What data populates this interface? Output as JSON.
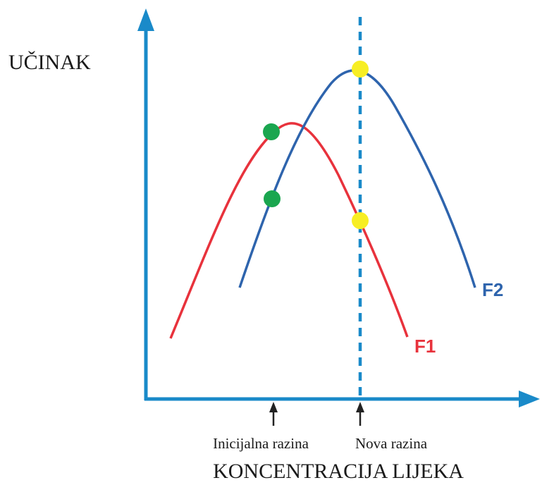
{
  "labels": {
    "y_axis": "UČINAK",
    "x_axis": "KONCENTRACIJA LIJEKA",
    "marker_initial": "Inicijalna razina",
    "marker_new": "Nova razina",
    "curve_f1": "F1",
    "curve_f2": "F2"
  },
  "colors": {
    "axis": "#1a8ac9",
    "curve_f1": "#e8323c",
    "curve_f2": "#2e64ad",
    "point_initial": "#1aa64f",
    "point_new": "#f7ee24",
    "marker_arrow": "#222222"
  }
}
